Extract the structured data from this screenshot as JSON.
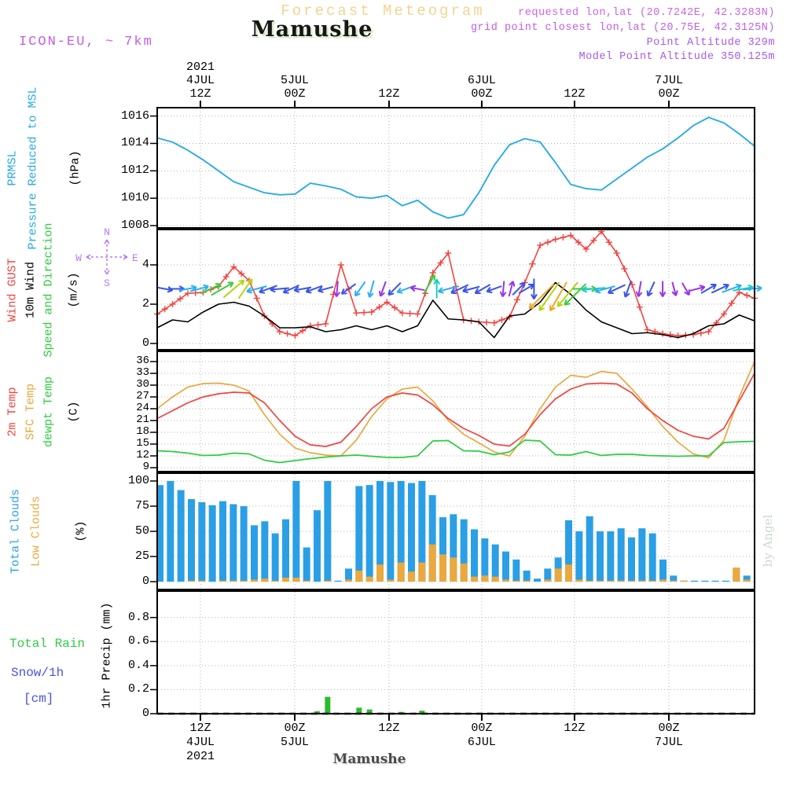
{
  "header": {
    "model_label": "ICON-EU, ~ 7km",
    "title": "Forecast Meteogram",
    "station": "Mamushe",
    "meta_lines": [
      {
        "text": "requested lon,lat (20.7242E, 42.3283N)",
        "color": "#cb64e6"
      },
      {
        "text": "grid point closest lon,lat (20.75E, 42.3125N)",
        "color": "#c05ee8"
      },
      {
        "text": "Point Altitude 329m",
        "color": "#a958ea"
      },
      {
        "text": "Model Point Altitude 350.125m",
        "color": "#a958ea"
      }
    ]
  },
  "watermark": "by Angel",
  "footer": {
    "station": "Mamushe"
  },
  "time_axis": {
    "tick_t": [
      5.64,
      17.96,
      30.27,
      42.38,
      54.49,
      66.81
    ],
    "top_rows": [
      [
        "2021",
        "",
        "",
        "",
        "",
        ""
      ],
      [
        "4JUL",
        "5JUL",
        "",
        "6JUL",
        "",
        "7JUL"
      ],
      [
        "12Z",
        "00Z",
        "12Z",
        "00Z",
        "12Z",
        "00Z"
      ]
    ],
    "bottom_rows": [
      [
        "12Z",
        "00Z",
        "12Z",
        "00Z",
        "12Z",
        "00Z"
      ],
      [
        "4JUL",
        "5JUL",
        "",
        "6JUL",
        "",
        "7JUL"
      ],
      [
        "2021",
        "",
        "",
        "",
        "",
        ""
      ]
    ]
  },
  "chart_data": {
    "type": "meteogram",
    "x_hours_range": [
      0,
      78
    ],
    "grid": "dotted",
    "panels": [
      {
        "id": "pressure",
        "side_labels": [
          {
            "text": "PRMSL",
            "color": "#29abe2"
          },
          {
            "text": "Pressure Reduced to MSL",
            "color": "#29abe2"
          },
          {
            "text": "(hPa)",
            "color": "#000000"
          }
        ],
        "yticks": [
          1008,
          1010,
          1012,
          1014,
          1016
        ],
        "ylim": [
          1007.83,
          1016.61
        ],
        "series": [
          {
            "name": "PRMSL",
            "color": "#29abe2",
            "width": 1.9,
            "marker": "none",
            "t0": 0,
            "dt": 2,
            "values": [
              1014.4,
              1014.1,
              1013.5,
              1012.8,
              1012.0,
              1011.2,
              1010.8,
              1010.4,
              1010.25,
              1010.3,
              1011.1,
              1010.9,
              1010.65,
              1010.1,
              1010.0,
              1010.2,
              1009.45,
              1009.85,
              1009.0,
              1008.55,
              1008.8,
              1010.4,
              1012.4,
              1013.9,
              1014.35,
              1014.1,
              1012.6,
              1011.0,
              1010.7,
              1010.6,
              1011.4,
              1012.2,
              1013.0,
              1013.6,
              1014.4,
              1015.3,
              1015.9,
              1015.5,
              1014.7,
              1013.8
            ]
          }
        ]
      },
      {
        "id": "wind",
        "side_labels": [
          {
            "text": "Wind GUST",
            "color": "#f2433f"
          },
          {
            "text": "10m Wind",
            "color": "#000000"
          },
          {
            "text": "Speed and Direction",
            "color": "#2ecc40"
          },
          {
            "text": "(m/s)",
            "color": "#000000"
          }
        ],
        "compass": {
          "n": "N",
          "e": "E",
          "s": "S",
          "w": "W",
          "color": "#b97af0"
        },
        "yticks": [
          0,
          2,
          4
        ],
        "ylim": [
          -0.32,
          5.8
        ],
        "series": [
          {
            "name": "Wind GUST",
            "color": "#f2433f",
            "width": 1.6,
            "marker": "plus",
            "t0": 0,
            "dt": 2,
            "values": [
              1.5,
              2.0,
              2.55,
              2.6,
              2.9,
              3.9,
              3.2,
              1.4,
              0.6,
              0.4,
              0.9,
              1.0,
              4.0,
              1.55,
              1.6,
              2.1,
              1.55,
              1.5,
              3.6,
              4.6,
              1.2,
              1.1,
              1.05,
              1.35,
              3.1,
              5.0,
              5.3,
              5.5,
              4.8,
              5.7,
              4.6,
              3.0,
              0.7,
              0.5,
              0.4,
              0.45,
              0.6,
              1.5,
              2.6,
              2.3
            ]
          },
          {
            "name": "10m Wind",
            "color": "#000000",
            "width": 1.6,
            "marker": "none",
            "t0": 0,
            "dt": 2,
            "values": [
              0.8,
              1.2,
              1.1,
              1.6,
              2.0,
              2.1,
              1.9,
              1.4,
              0.8,
              0.8,
              0.85,
              0.6,
              0.7,
              0.9,
              0.7,
              0.9,
              0.6,
              0.9,
              2.2,
              1.25,
              1.2,
              1.1,
              0.3,
              1.4,
              1.5,
              2.1,
              3.1,
              2.5,
              1.7,
              1.1,
              0.8,
              0.5,
              0.55,
              0.45,
              0.3,
              0.5,
              0.9,
              1.0,
              1.45,
              1.15
            ]
          }
        ],
        "arrow_colors": {
          "B": "#3a55e8",
          "C": "#2bb1ee",
          "T": "#18cfc0",
          "G": "#3ecb3e",
          "Y": "#b8d414",
          "O": "#efa726",
          "P": "#9a35e8"
        },
        "arrows": [
          [
            1,
            350,
            20,
            "B"
          ],
          [
            2.5,
            0,
            20,
            "B"
          ],
          [
            4,
            10,
            22,
            "C"
          ],
          [
            5.5,
            15,
            24,
            "C"
          ],
          [
            7,
            25,
            28,
            "G"
          ],
          [
            8.5,
            30,
            32,
            "G"
          ],
          [
            10,
            40,
            34,
            "Y"
          ],
          [
            11.5,
            55,
            30,
            "Y"
          ],
          [
            13,
            195,
            26,
            "C"
          ],
          [
            14.5,
            200,
            24,
            "B"
          ],
          [
            16,
            185,
            24,
            "B"
          ],
          [
            17.5,
            205,
            22,
            "B"
          ],
          [
            19,
            190,
            22,
            "B"
          ],
          [
            20.5,
            200,
            22,
            "B"
          ],
          [
            22,
            195,
            20,
            "B"
          ],
          [
            23.5,
            265,
            20,
            "P"
          ],
          [
            25,
            215,
            22,
            "B"
          ],
          [
            26.5,
            235,
            22,
            "C"
          ],
          [
            28,
            255,
            22,
            "C"
          ],
          [
            29.5,
            250,
            20,
            "P"
          ],
          [
            31,
            225,
            22,
            "B"
          ],
          [
            32.5,
            200,
            24,
            "C"
          ],
          [
            34,
            170,
            18,
            "P"
          ],
          [
            35.5,
            60,
            28,
            "G",
            3.0
          ],
          [
            36.5,
            90,
            24,
            "T"
          ],
          [
            38,
            195,
            26,
            "C"
          ],
          [
            39.5,
            205,
            24,
            "B"
          ],
          [
            41,
            195,
            22,
            "B"
          ],
          [
            42.5,
            210,
            22,
            "B"
          ],
          [
            44,
            200,
            20,
            "B"
          ],
          [
            45.2,
            265,
            20,
            "P"
          ],
          [
            46.2,
            75,
            20,
            "P"
          ],
          [
            47.2,
            45,
            22,
            "B"
          ],
          [
            48.2,
            30,
            22,
            "B"
          ],
          [
            49.2,
            270,
            26,
            "B"
          ],
          [
            50.2,
            225,
            44,
            "O",
            2.4
          ],
          [
            51.2,
            235,
            44,
            "Y",
            2.4
          ],
          [
            52.4,
            240,
            42,
            "O",
            2.4
          ],
          [
            53.6,
            230,
            40,
            "Y",
            2.5
          ],
          [
            54.6,
            225,
            38,
            "G",
            2.5
          ],
          [
            55.8,
            0,
            30,
            "G"
          ],
          [
            57,
            185,
            30,
            "T"
          ],
          [
            58.5,
            195,
            26,
            "C"
          ],
          [
            60,
            205,
            24,
            "B"
          ],
          [
            61.5,
            250,
            22,
            "B"
          ],
          [
            63,
            260,
            20,
            "P"
          ],
          [
            64.5,
            245,
            20,
            "B"
          ],
          [
            66,
            270,
            20,
            "P"
          ],
          [
            67.5,
            285,
            18,
            "P"
          ],
          [
            69,
            300,
            18,
            "P"
          ],
          [
            70.5,
            15,
            20,
            "P"
          ],
          [
            72,
            30,
            22,
            "B"
          ],
          [
            73.5,
            25,
            24,
            "B"
          ],
          [
            75,
            20,
            26,
            "C"
          ],
          [
            76.5,
            10,
            26,
            "T"
          ],
          [
            77.7,
            5,
            24,
            "C"
          ]
        ]
      },
      {
        "id": "temp",
        "side_labels": [
          {
            "text": "2m Temp",
            "color": "#f2433f"
          },
          {
            "text": "SFC Temp",
            "color": "#eaa83e"
          },
          {
            "text": "dewpt Temp",
            "color": "#2ecc40"
          },
          {
            "text": "(C)",
            "color": "#000000"
          }
        ],
        "yticks": [
          9,
          12,
          15,
          18,
          21,
          24,
          27,
          30,
          33,
          36
        ],
        "ylim": [
          8.0,
          38.6
        ],
        "series": [
          {
            "name": "SFC Temp",
            "color": "#eaa83e",
            "width": 1.7,
            "marker": "none",
            "t0": 0,
            "dt": 2,
            "values": [
              24.0,
              27.0,
              29.5,
              30.4,
              30.5,
              30.0,
              28.5,
              22.5,
              17.5,
              14.0,
              12.8,
              12.2,
              12.0,
              16.0,
              22.0,
              26.5,
              29.0,
              29.5,
              26.0,
              21.0,
              17.5,
              15.3,
              13.0,
              12.0,
              17.0,
              24.0,
              29.5,
              32.5,
              32.0,
              33.5,
              33.0,
              29.0,
              24.5,
              19.5,
              15.5,
              12.5,
              11.5,
              16.0,
              27.0,
              36.0
            ]
          },
          {
            "name": "2m Temp",
            "color": "#f2433f",
            "width": 1.7,
            "marker": "none",
            "t0": 0,
            "dt": 2,
            "values": [
              21.5,
              23.5,
              25.5,
              27.0,
              27.8,
              28.2,
              28.0,
              25.5,
              21.0,
              17.0,
              14.8,
              14.4,
              15.5,
              19.5,
              24.0,
              27.0,
              28.0,
              27.5,
              25.0,
              21.5,
              19.0,
              17.2,
              15.0,
              14.5,
              17.5,
              22.5,
              26.5,
              29.0,
              30.3,
              30.5,
              30.3,
              28.0,
              24.0,
              21.0,
              18.5,
              17.0,
              16.3,
              19.0,
              26.0,
              33.0
            ]
          },
          {
            "name": "dewpt Temp",
            "color": "#2ecc40",
            "width": 1.7,
            "marker": "none",
            "t0": 0,
            "dt": 2,
            "values": [
              13.3,
              13.1,
              12.7,
              12.1,
              12.2,
              12.7,
              12.5,
              10.9,
              10.3,
              10.8,
              11.3,
              11.7,
              12.0,
              12.2,
              11.9,
              11.6,
              11.6,
              12.0,
              15.8,
              15.9,
              13.3,
              13.2,
              12.3,
              13.0,
              16.0,
              15.8,
              12.3,
              12.2,
              13.1,
              12.1,
              12.4,
              12.4,
              12.1,
              12.0,
              11.9,
              12.0,
              12.0,
              15.4,
              15.6,
              15.7
            ]
          }
        ]
      },
      {
        "id": "clouds",
        "side_labels": [
          {
            "text": "Total Clouds",
            "color": "#2b9fe6"
          },
          {
            "text": "Low Clouds",
            "color": "#eaa83e"
          },
          {
            "text": "(%)",
            "color": "#000000"
          }
        ],
        "yticks": [
          0,
          25,
          50,
          75,
          100
        ],
        "ylim": [
          -7.8,
          107.8
        ],
        "bars": [
          {
            "name": "Total Clouds",
            "color": "#2b9fe6",
            "width": 9,
            "values": [
              96,
              100,
              91,
              82,
              79,
              76,
              80,
              77,
              75,
              56,
              60,
              48,
              62,
              100,
              34,
              71,
              100,
              1,
              13,
              95,
              96,
              100,
              99,
              100,
              98,
              100,
              86,
              64,
              67,
              62,
              52,
              43,
              37,
              30,
              22,
              11,
              3,
              13,
              24,
              61,
              50,
              65,
              50,
              50,
              53,
              44,
              53,
              48,
              22,
              6,
              1,
              1,
              1,
              1,
              1,
              13,
              6
            ]
          },
          {
            "name": "Low Clouds",
            "color": "#eaa83e",
            "width": 9,
            "values": [
              0,
              0,
              0,
              1,
              1,
              0,
              1,
              1,
              1,
              2,
              3,
              1,
              4,
              4,
              1,
              0,
              1,
              0,
              2,
              11,
              5,
              17,
              2,
              19,
              10,
              19,
              37,
              27,
              24,
              18,
              5,
              6,
              5,
              2,
              1,
              1,
              0,
              2,
              13,
              17,
              2,
              1,
              1,
              1,
              1,
              1,
              1,
              1,
              2,
              1,
              1,
              0,
              0,
              0,
              0,
              14,
              2
            ]
          }
        ]
      },
      {
        "id": "precip",
        "h_labels": [
          {
            "text": "Total  Rain",
            "color": "#2ecc40"
          },
          {
            "text": "Snow/1h",
            "color": "#4b52e6"
          },
          {
            "text": "[cm]",
            "color": "#4b52e6"
          }
        ],
        "side_labels": [
          {
            "text": "1hr Precip  (mm)",
            "color": "#000000"
          }
        ],
        "yticks": [
          0,
          0.2,
          0.4,
          0.6,
          0.8
        ],
        "ylim": [
          0,
          1.02
        ],
        "zero_dashed": true,
        "bars": [
          {
            "name": "Rain",
            "color": "#2bbb2b",
            "width": 7,
            "values": [
              0,
              0,
              0,
              0,
              0,
              0,
              0,
              0,
              0,
              0,
              0,
              0,
              0,
              0,
              0,
              0.02,
              0.14,
              0,
              0,
              0.05,
              0.035,
              0,
              0,
              0.015,
              0,
              0.025,
              0,
              0,
              0,
              0,
              0,
              0,
              0,
              0,
              0,
              0,
              0,
              0,
              0,
              0,
              0,
              0,
              0,
              0,
              0,
              0,
              0,
              0,
              0,
              0,
              0,
              0,
              0,
              0,
              0,
              0,
              0
            ]
          }
        ]
      }
    ]
  }
}
